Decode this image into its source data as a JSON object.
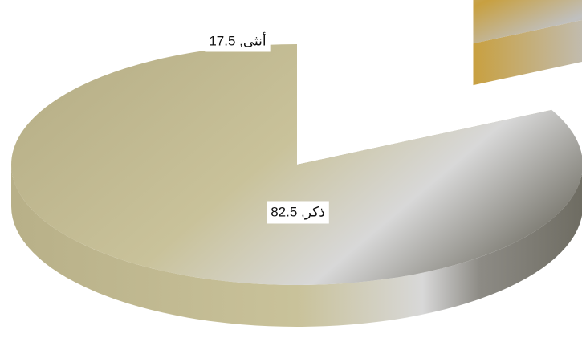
{
  "chart_data": {
    "type": "pie",
    "style": "3d-exploded",
    "slices": [
      {
        "label": "أنثى",
        "value": 17.5,
        "display": "أنثى, 17.5",
        "exploded": true
      },
      {
        "label": "ذكر",
        "value": 82.5,
        "display": "ذكر, 82.5",
        "exploded": false
      }
    ],
    "legend": "none",
    "colors": {
      "male_light": "#c9c29a",
      "male_mid": "#b8b088",
      "male_highlight": "#d8d8d8",
      "male_dark": "#6e6c62",
      "female_gold": "#c8a040",
      "female_silver": "#c0c0c0",
      "female_dark": "#6b5a28"
    }
  }
}
